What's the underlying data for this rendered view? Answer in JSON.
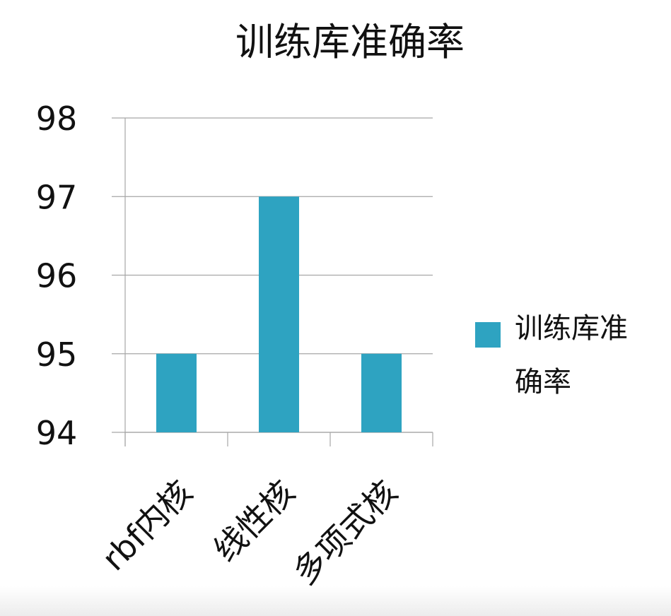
{
  "chart_data": {
    "type": "bar",
    "title": "训练库准确率",
    "categories": [
      "rbf内核",
      "线性核",
      "多项式核"
    ],
    "series": [
      {
        "name": "训练库准确率",
        "values": [
          95,
          97,
          95
        ],
        "color": "#2ea3c1"
      }
    ],
    "ylim": [
      94,
      98
    ],
    "yticks": [
      94,
      95,
      96,
      97,
      98
    ],
    "legend_position": "right",
    "grid": true,
    "legend_label_lines": [
      "训练库准",
      "确率"
    ]
  }
}
